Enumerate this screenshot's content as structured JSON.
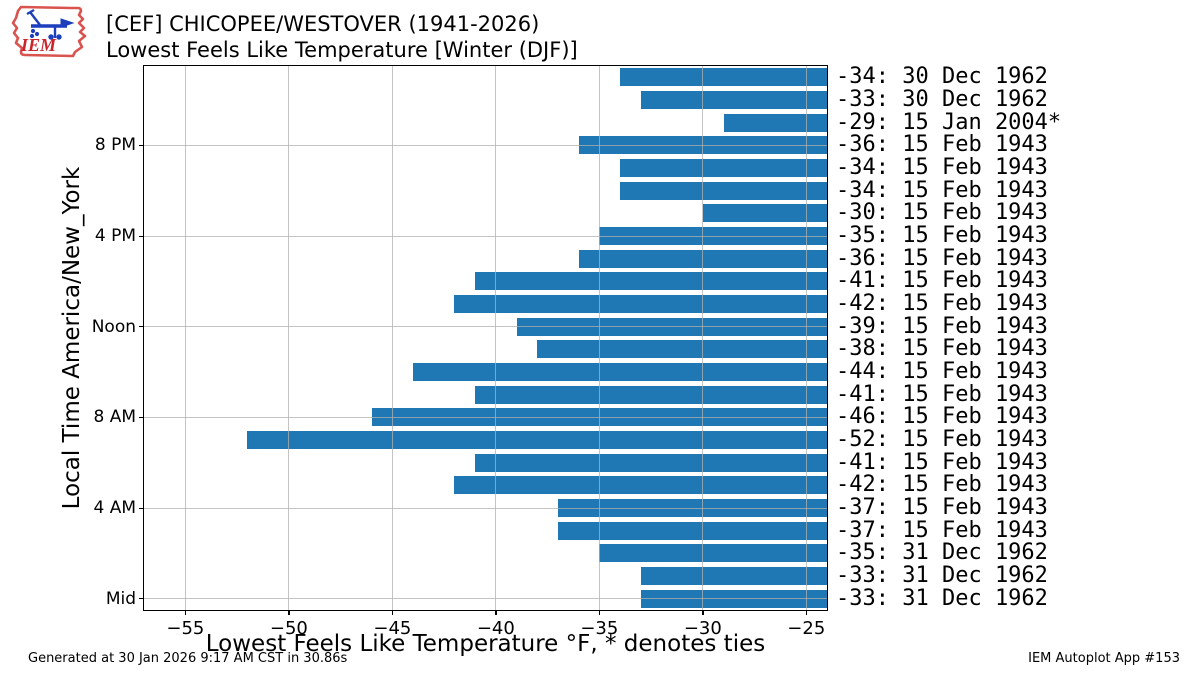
{
  "header": {
    "title_line1": "[CEF] CHICOPEE/WESTOVER (1941-2026)",
    "title_line2": "Lowest Feels Like Temperature [Winter (DJF)]",
    "logo_text": "IEM"
  },
  "footer": {
    "generated": "Generated at 30 Jan 2026 9:17 AM CST in 30.86s",
    "app": "IEM Autoplot App #153"
  },
  "chart_data": {
    "type": "bar",
    "orientation": "horizontal",
    "title": "[CEF] CHICOPEE/WESTOVER (1941-2026) Lowest Feels Like Temperature [Winter (DJF)]",
    "xlabel": "Lowest Feels Like Temperature °F, * denotes ties",
    "ylabel": "Local Time America/New_York",
    "xlim": [
      -57,
      -24
    ],
    "bar_base": -24,
    "x_ticks": [
      -55,
      -50,
      -45,
      -40,
      -35,
      -30,
      -25
    ],
    "x_tick_labels": [
      "−55",
      "−50",
      "−45",
      "−40",
      "−35",
      "−30",
      "−25"
    ],
    "y_tick_labels": [
      "8 PM",
      "4 PM",
      "Noon",
      "8 AM",
      "4 AM",
      "Mid"
    ],
    "y_tick_row_indices": [
      3,
      7,
      11,
      15,
      19,
      23
    ],
    "grid_on": true,
    "bar_color": "#1f77b4",
    "grid_color": "#b0b0b0",
    "rows": [
      {
        "hour": "11 PM",
        "value": -34,
        "date": "30 Dec 1962",
        "label": "-34: 30 Dec 1962"
      },
      {
        "hour": "10 PM",
        "value": -33,
        "date": "30 Dec 1962",
        "label": "-33: 30 Dec 1962"
      },
      {
        "hour": "9 PM",
        "value": -29,
        "date": "15 Jan 2004*",
        "label": "-29: 15 Jan 2004*"
      },
      {
        "hour": "8 PM",
        "value": -36,
        "date": "15 Feb 1943",
        "label": "-36: 15 Feb 1943"
      },
      {
        "hour": "7 PM",
        "value": -34,
        "date": "15 Feb 1943",
        "label": "-34: 15 Feb 1943"
      },
      {
        "hour": "6 PM",
        "value": -34,
        "date": "15 Feb 1943",
        "label": "-34: 15 Feb 1943"
      },
      {
        "hour": "5 PM",
        "value": -30,
        "date": "15 Feb 1943",
        "label": "-30: 15 Feb 1943"
      },
      {
        "hour": "4 PM",
        "value": -35,
        "date": "15 Feb 1943",
        "label": "-35: 15 Feb 1943"
      },
      {
        "hour": "3 PM",
        "value": -36,
        "date": "15 Feb 1943",
        "label": "-36: 15 Feb 1943"
      },
      {
        "hour": "2 PM",
        "value": -41,
        "date": "15 Feb 1943",
        "label": "-41: 15 Feb 1943"
      },
      {
        "hour": "1 PM",
        "value": -42,
        "date": "15 Feb 1943",
        "label": "-42: 15 Feb 1943"
      },
      {
        "hour": "Noon",
        "value": -39,
        "date": "15 Feb 1943",
        "label": "-39: 15 Feb 1943"
      },
      {
        "hour": "11 AM",
        "value": -38,
        "date": "15 Feb 1943",
        "label": "-38: 15 Feb 1943"
      },
      {
        "hour": "10 AM",
        "value": -44,
        "date": "15 Feb 1943",
        "label": "-44: 15 Feb 1943"
      },
      {
        "hour": "9 AM",
        "value": -41,
        "date": "15 Feb 1943",
        "label": "-41: 15 Feb 1943"
      },
      {
        "hour": "8 AM",
        "value": -46,
        "date": "15 Feb 1943",
        "label": "-46: 15 Feb 1943"
      },
      {
        "hour": "7 AM",
        "value": -52,
        "date": "15 Feb 1943",
        "label": "-52: 15 Feb 1943"
      },
      {
        "hour": "6 AM",
        "value": -41,
        "date": "15 Feb 1943",
        "label": "-41: 15 Feb 1943"
      },
      {
        "hour": "5 AM",
        "value": -42,
        "date": "15 Feb 1943",
        "label": "-42: 15 Feb 1943"
      },
      {
        "hour": "4 AM",
        "value": -37,
        "date": "15 Feb 1943",
        "label": "-37: 15 Feb 1943"
      },
      {
        "hour": "3 AM",
        "value": -37,
        "date": "15 Feb 1943",
        "label": "-37: 15 Feb 1943"
      },
      {
        "hour": "2 AM",
        "value": -35,
        "date": "31 Dec 1962",
        "label": "-35: 31 Dec 1962"
      },
      {
        "hour": "1 AM",
        "value": -33,
        "date": "31 Dec 1962",
        "label": "-33: 31 Dec 1962"
      },
      {
        "hour": "Mid",
        "value": -33,
        "date": "31 Dec 1962",
        "label": "-33: 31 Dec 1962"
      }
    ]
  }
}
